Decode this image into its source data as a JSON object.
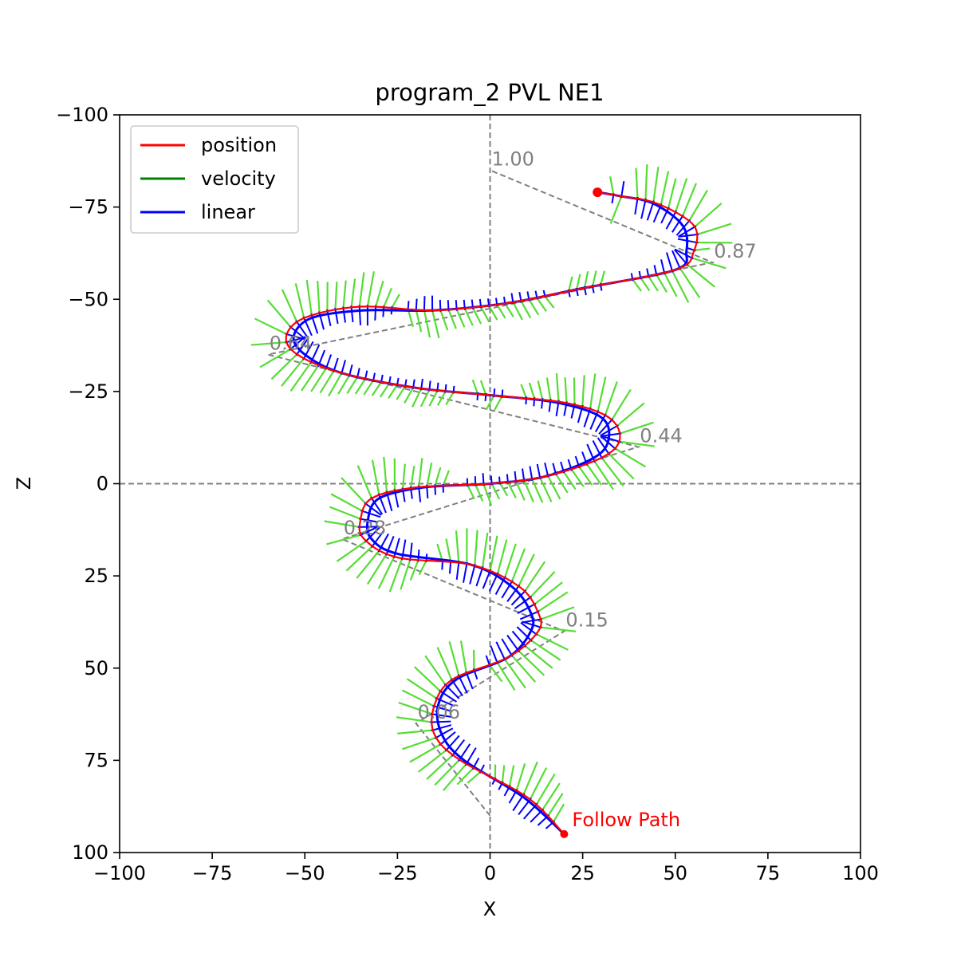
{
  "chart_data": {
    "type": "line",
    "title": "program_2 PVL NE1",
    "xlabel": "X",
    "ylabel": "Z",
    "xlim": [
      -100,
      100
    ],
    "ylim": [
      100,
      -100
    ],
    "y_inverted": true,
    "xticks": [
      -100,
      -75,
      -50,
      -25,
      0,
      25,
      50,
      75,
      100
    ],
    "yticks": [
      -100,
      -75,
      -50,
      -25,
      0,
      25,
      50,
      75,
      100
    ],
    "xtick_labels": [
      "−100",
      "−75",
      "−50",
      "−25",
      "0",
      "25",
      "50",
      "75",
      "100"
    ],
    "ytick_labels": [
      "−100",
      "−75",
      "−50",
      "−25",
      "0",
      "25",
      "50",
      "75",
      "100"
    ],
    "reference_lines": {
      "x0": true,
      "z0": true,
      "style": "dashed",
      "color": "#808080"
    },
    "legend": {
      "placement": "top-left",
      "entries": [
        {
          "label": "position",
          "color": "#ff0000"
        },
        {
          "label": "velocity",
          "color": "#008000"
        },
        {
          "label": "linear",
          "color": "#0000ff"
        }
      ]
    },
    "series": [
      {
        "name": "position",
        "color": "#ff0000",
        "points": [
          [
            20,
            95
          ],
          [
            10,
            85
          ],
          [
            -8,
            75
          ],
          [
            -15,
            68
          ],
          [
            -15,
            60
          ],
          [
            -10,
            53
          ],
          [
            5,
            47
          ],
          [
            13,
            40
          ],
          [
            13,
            35
          ],
          [
            8,
            28
          ],
          [
            -5,
            22
          ],
          [
            -25,
            20
          ],
          [
            -34,
            15
          ],
          [
            -35,
            10
          ],
          [
            -32,
            4
          ],
          [
            -20,
            1
          ],
          [
            0,
            0
          ],
          [
            15,
            -2
          ],
          [
            30,
            -7
          ],
          [
            35,
            -12
          ],
          [
            32,
            -18
          ],
          [
            20,
            -22
          ],
          [
            0,
            -24
          ],
          [
            -20,
            -26
          ],
          [
            -40,
            -30
          ],
          [
            -52,
            -35
          ],
          [
            -55,
            -40
          ],
          [
            -50,
            -45
          ],
          [
            -35,
            -48
          ],
          [
            -15,
            -47
          ],
          [
            5,
            -49
          ],
          [
            25,
            -53
          ],
          [
            50,
            -58
          ],
          [
            55,
            -63
          ],
          [
            55,
            -70
          ],
          [
            45,
            -76
          ],
          [
            35,
            -78
          ],
          [
            29,
            -79
          ]
        ]
      },
      {
        "name": "linear",
        "color": "#0000ff",
        "points": [
          [
            20,
            95
          ],
          [
            9,
            85
          ],
          [
            -7,
            75
          ],
          [
            -13,
            68
          ],
          [
            -14,
            60
          ],
          [
            -9,
            53
          ],
          [
            5,
            47
          ],
          [
            11,
            40
          ],
          [
            11,
            35
          ],
          [
            6,
            28
          ],
          [
            -5,
            22
          ],
          [
            -25,
            19
          ],
          [
            -32,
            15
          ],
          [
            -33,
            10
          ],
          [
            -30,
            4
          ],
          [
            -18,
            1
          ],
          [
            0,
            0
          ],
          [
            15,
            -2
          ],
          [
            28,
            -7
          ],
          [
            32,
            -12
          ],
          [
            30,
            -18
          ],
          [
            18,
            -22
          ],
          [
            0,
            -24
          ],
          [
            -20,
            -26
          ],
          [
            -40,
            -30
          ],
          [
            -50,
            -35
          ],
          [
            -53,
            -40
          ],
          [
            -48,
            -45
          ],
          [
            -34,
            -47
          ],
          [
            -15,
            -47
          ],
          [
            5,
            -49
          ],
          [
            25,
            -53
          ],
          [
            50,
            -58
          ],
          [
            53,
            -63
          ],
          [
            52,
            -70
          ],
          [
            44,
            -76
          ],
          [
            35,
            -78
          ],
          [
            29,
            -79
          ]
        ]
      }
    ],
    "velocity_ticks": {
      "color": "#55dd33",
      "description": "short tangent strokes along the path"
    },
    "linear_ticks": {
      "color": "#0000ff",
      "description": "short hatch strokes along the path"
    },
    "annotations": [
      {
        "label": "",
        "x": 0,
        "z": 90
      },
      {
        "label": "0.06",
        "x": -20,
        "z": 65
      },
      {
        "label": "0.15",
        "x": 20,
        "z": 40
      },
      {
        "label": "0.28",
        "x": -40,
        "z": 15
      },
      {
        "label": "0.44",
        "x": 40,
        "z": -10
      },
      {
        "label": "0.64",
        "x": -60,
        "z": -35
      },
      {
        "label": "0.87",
        "x": 60,
        "z": -60
      },
      {
        "label": "1.00",
        "x": 0,
        "z": -85
      }
    ],
    "start_marker": {
      "label": "Follow Path",
      "x": 20,
      "z": 95,
      "color": "#ff0000"
    },
    "end_marker": {
      "x": 29,
      "z": -79,
      "color": "#ff0000"
    }
  }
}
